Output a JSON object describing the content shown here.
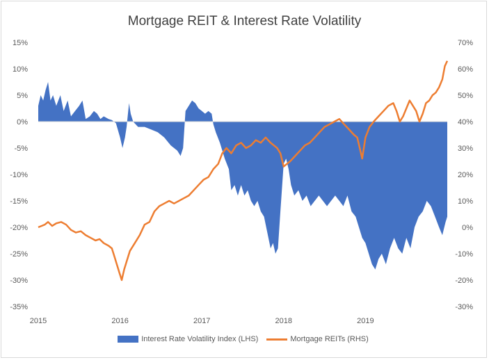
{
  "chart_data": {
    "type": "area",
    "title": "Mortgage REIT & Interest Rate Volatility",
    "x_ticks": [
      "2015",
      "2016",
      "2017",
      "2018",
      "2019"
    ],
    "xlim": [
      2015.0,
      2020.0
    ],
    "y_left": {
      "range": [
        -35,
        15
      ],
      "step": 5,
      "suffix": "%",
      "ticks": [
        "15%",
        "10%",
        "5%",
        "0%",
        "-5%",
        "-10%",
        "-15%",
        "-20%",
        "-25%",
        "-30%",
        "-35%"
      ]
    },
    "y_right": {
      "range": [
        -30,
        70
      ],
      "step": 10,
      "suffix": "%",
      "ticks": [
        "70%",
        "60%",
        "50%",
        "40%",
        "30%",
        "20%",
        "10%",
        "0%",
        "-10%",
        "-20%",
        "-30%"
      ]
    },
    "grid": false,
    "legend_position": "bottom",
    "series": [
      {
        "name": "Interest Rate Volatility Index (LHS)",
        "type": "area",
        "axis": "left",
        "color": "#4472c4",
        "points": [
          [
            2015.0,
            3
          ],
          [
            2015.03,
            5
          ],
          [
            2015.06,
            4
          ],
          [
            2015.09,
            6
          ],
          [
            2015.12,
            7.5
          ],
          [
            2015.15,
            4
          ],
          [
            2015.18,
            5
          ],
          [
            2015.22,
            3
          ],
          [
            2015.27,
            5
          ],
          [
            2015.31,
            2
          ],
          [
            2015.36,
            4
          ],
          [
            2015.4,
            1
          ],
          [
            2015.45,
            2
          ],
          [
            2015.5,
            3
          ],
          [
            2015.54,
            4
          ],
          [
            2015.58,
            0.5
          ],
          [
            2015.63,
            1
          ],
          [
            2015.68,
            2
          ],
          [
            2015.72,
            1.5
          ],
          [
            2015.76,
            0.5
          ],
          [
            2015.8,
            1
          ],
          [
            2015.86,
            0.5
          ],
          [
            2015.9,
            0.3
          ],
          [
            2015.95,
            -0.3
          ],
          [
            2016.0,
            -3
          ],
          [
            2016.03,
            -5
          ],
          [
            2016.06,
            -3
          ],
          [
            2016.08,
            -1
          ],
          [
            2016.11,
            3.5
          ],
          [
            2016.13,
            1.5
          ],
          [
            2016.16,
            0
          ],
          [
            2016.22,
            -1
          ],
          [
            2016.3,
            -1
          ],
          [
            2016.38,
            -1.5
          ],
          [
            2016.46,
            -2
          ],
          [
            2016.54,
            -3
          ],
          [
            2016.62,
            -4.5
          ],
          [
            2016.7,
            -5.5
          ],
          [
            2016.74,
            -6.5
          ],
          [
            2016.77,
            -5
          ],
          [
            2016.8,
            2
          ],
          [
            2016.84,
            3
          ],
          [
            2016.88,
            4
          ],
          [
            2016.92,
            3.5
          ],
          [
            2016.96,
            2.5
          ],
          [
            2017.0,
            2
          ],
          [
            2017.04,
            1.5
          ],
          [
            2017.08,
            2
          ],
          [
            2017.12,
            1.5
          ],
          [
            2017.14,
            -0.5
          ],
          [
            2017.17,
            -2
          ],
          [
            2017.22,
            -4
          ],
          [
            2017.28,
            -7
          ],
          [
            2017.33,
            -9
          ],
          [
            2017.36,
            -13
          ],
          [
            2017.4,
            -12
          ],
          [
            2017.44,
            -14
          ],
          [
            2017.48,
            -12
          ],
          [
            2017.52,
            -14
          ],
          [
            2017.56,
            -13
          ],
          [
            2017.6,
            -15
          ],
          [
            2017.64,
            -16
          ],
          [
            2017.68,
            -15
          ],
          [
            2017.72,
            -17
          ],
          [
            2017.76,
            -18
          ],
          [
            2017.8,
            -21
          ],
          [
            2017.84,
            -24
          ],
          [
            2017.87,
            -23
          ],
          [
            2017.9,
            -25
          ],
          [
            2017.93,
            -24
          ],
          [
            2017.96,
            -17
          ],
          [
            2018.0,
            -8
          ],
          [
            2018.03,
            -7
          ],
          [
            2018.06,
            -9
          ],
          [
            2018.09,
            -12
          ],
          [
            2018.13,
            -14
          ],
          [
            2018.18,
            -13
          ],
          [
            2018.23,
            -15
          ],
          [
            2018.28,
            -14
          ],
          [
            2018.33,
            -16
          ],
          [
            2018.38,
            -15
          ],
          [
            2018.43,
            -14
          ],
          [
            2018.48,
            -15
          ],
          [
            2018.53,
            -16
          ],
          [
            2018.58,
            -15
          ],
          [
            2018.63,
            -14
          ],
          [
            2018.68,
            -15
          ],
          [
            2018.73,
            -16
          ],
          [
            2018.78,
            -14
          ],
          [
            2018.83,
            -17
          ],
          [
            2018.88,
            -18
          ],
          [
            2018.92,
            -20
          ],
          [
            2018.96,
            -22
          ],
          [
            2019.0,
            -23
          ],
          [
            2019.04,
            -25
          ],
          [
            2019.08,
            -27
          ],
          [
            2019.12,
            -28
          ],
          [
            2019.16,
            -26
          ],
          [
            2019.2,
            -25
          ],
          [
            2019.25,
            -27
          ],
          [
            2019.3,
            -24
          ],
          [
            2019.35,
            -22
          ],
          [
            2019.4,
            -24
          ],
          [
            2019.45,
            -25
          ],
          [
            2019.5,
            -22
          ],
          [
            2019.55,
            -24
          ],
          [
            2019.6,
            -20
          ],
          [
            2019.65,
            -18
          ],
          [
            2019.7,
            -17
          ],
          [
            2019.75,
            -15
          ],
          [
            2019.8,
            -16
          ],
          [
            2019.85,
            -18
          ],
          [
            2019.9,
            -20
          ],
          [
            2019.94,
            -21.5
          ],
          [
            2019.98,
            -19
          ],
          [
            2020.0,
            -18
          ]
        ]
      },
      {
        "name": "Mortgage REITs (RHS)",
        "type": "line",
        "axis": "right",
        "color": "#ed7d31",
        "points": [
          [
            2015.0,
            0
          ],
          [
            2015.04,
            0.5
          ],
          [
            2015.08,
            1
          ],
          [
            2015.12,
            2
          ],
          [
            2015.17,
            0.5
          ],
          [
            2015.22,
            1.5
          ],
          [
            2015.28,
            2
          ],
          [
            2015.34,
            1
          ],
          [
            2015.4,
            -1
          ],
          [
            2015.46,
            -2
          ],
          [
            2015.52,
            -1.5
          ],
          [
            2015.58,
            -3
          ],
          [
            2015.64,
            -4
          ],
          [
            2015.7,
            -5
          ],
          [
            2015.75,
            -4.5
          ],
          [
            2015.8,
            -6
          ],
          [
            2015.86,
            -7
          ],
          [
            2015.9,
            -8
          ],
          [
            2015.93,
            -11
          ],
          [
            2015.96,
            -14
          ],
          [
            2015.99,
            -17
          ],
          [
            2016.02,
            -20
          ],
          [
            2016.05,
            -16
          ],
          [
            2016.08,
            -13
          ],
          [
            2016.12,
            -9
          ],
          [
            2016.18,
            -6
          ],
          [
            2016.24,
            -3
          ],
          [
            2016.3,
            1
          ],
          [
            2016.36,
            2
          ],
          [
            2016.42,
            6
          ],
          [
            2016.48,
            8
          ],
          [
            2016.54,
            9
          ],
          [
            2016.6,
            10
          ],
          [
            2016.66,
            9
          ],
          [
            2016.72,
            10
          ],
          [
            2016.78,
            11
          ],
          [
            2016.84,
            12
          ],
          [
            2016.9,
            14
          ],
          [
            2016.96,
            16
          ],
          [
            2017.02,
            18
          ],
          [
            2017.08,
            19
          ],
          [
            2017.14,
            22
          ],
          [
            2017.2,
            24
          ],
          [
            2017.25,
            28
          ],
          [
            2017.3,
            30
          ],
          [
            2017.36,
            28
          ],
          [
            2017.42,
            31
          ],
          [
            2017.48,
            32
          ],
          [
            2017.54,
            30
          ],
          [
            2017.6,
            31
          ],
          [
            2017.66,
            33
          ],
          [
            2017.72,
            32
          ],
          [
            2017.78,
            34
          ],
          [
            2017.84,
            32
          ],
          [
            2017.88,
            31
          ],
          [
            2017.92,
            30
          ],
          [
            2017.96,
            28
          ],
          [
            2018.0,
            23
          ],
          [
            2018.04,
            24
          ],
          [
            2018.08,
            25
          ],
          [
            2018.14,
            27
          ],
          [
            2018.2,
            29
          ],
          [
            2018.26,
            31
          ],
          [
            2018.32,
            32
          ],
          [
            2018.38,
            34
          ],
          [
            2018.44,
            36
          ],
          [
            2018.5,
            38
          ],
          [
            2018.56,
            39
          ],
          [
            2018.62,
            40
          ],
          [
            2018.68,
            41
          ],
          [
            2018.74,
            39
          ],
          [
            2018.8,
            37
          ],
          [
            2018.86,
            35
          ],
          [
            2018.9,
            34
          ],
          [
            2018.93,
            30
          ],
          [
            2018.96,
            26
          ],
          [
            2019.0,
            34
          ],
          [
            2019.05,
            38
          ],
          [
            2019.1,
            40
          ],
          [
            2019.16,
            42
          ],
          [
            2019.22,
            44
          ],
          [
            2019.28,
            46
          ],
          [
            2019.34,
            47
          ],
          [
            2019.38,
            44
          ],
          [
            2019.42,
            40
          ],
          [
            2019.46,
            42
          ],
          [
            2019.5,
            45
          ],
          [
            2019.54,
            48
          ],
          [
            2019.58,
            46
          ],
          [
            2019.62,
            44
          ],
          [
            2019.66,
            40
          ],
          [
            2019.7,
            43
          ],
          [
            2019.74,
            47
          ],
          [
            2019.78,
            48
          ],
          [
            2019.82,
            50
          ],
          [
            2019.86,
            51
          ],
          [
            2019.9,
            53
          ],
          [
            2019.94,
            56
          ],
          [
            2019.97,
            61
          ],
          [
            2020.0,
            63
          ]
        ]
      }
    ]
  }
}
